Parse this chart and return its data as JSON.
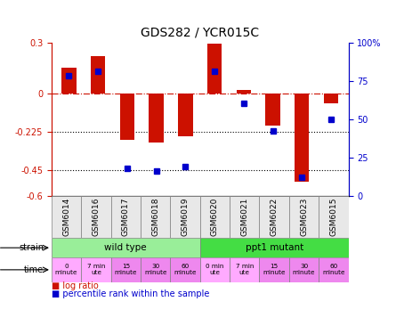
{
  "title": "GDS282 / YCR015C",
  "samples": [
    "GSM6014",
    "GSM6016",
    "GSM6017",
    "GSM6018",
    "GSM6019",
    "GSM6020",
    "GSM6021",
    "GSM6022",
    "GSM6023",
    "GSM6015"
  ],
  "log_ratio": [
    0.15,
    0.22,
    -0.27,
    -0.29,
    -0.25,
    0.29,
    0.02,
    -0.19,
    -0.52,
    -0.06
  ],
  "percentile": [
    78,
    81,
    18,
    16,
    19,
    81,
    60,
    42,
    12,
    50
  ],
  "ylim": [
    -0.6,
    0.3
  ],
  "bar_color": "#CC1100",
  "dot_color": "#0000CC",
  "zero_line_color": "#CC1100",
  "hline_color": "black",
  "strain_labels": [
    {
      "text": "wild type",
      "start": 0,
      "end": 5,
      "color": "#99EE99"
    },
    {
      "text": "ppt1 mutant",
      "start": 5,
      "end": 10,
      "color": "#44DD44"
    }
  ],
  "time_labels": [
    {
      "text": "0\nminute",
      "idx": 0,
      "color": "#FFAAFF"
    },
    {
      "text": "7 min\nute",
      "idx": 1,
      "color": "#FFAAFF"
    },
    {
      "text": "15\nminute",
      "idx": 2,
      "color": "#EE88EE"
    },
    {
      "text": "30\nminute",
      "idx": 3,
      "color": "#EE88EE"
    },
    {
      "text": "60\nminute",
      "idx": 4,
      "color": "#EE88EE"
    },
    {
      "text": "0 min\nute",
      "idx": 5,
      "color": "#FFAAFF"
    },
    {
      "text": "7 min\nute",
      "idx": 6,
      "color": "#FFAAFF"
    },
    {
      "text": "15\nminute",
      "idx": 7,
      "color": "#EE88EE"
    },
    {
      "text": "30\nminute",
      "idx": 8,
      "color": "#EE88EE"
    },
    {
      "text": "60\nminute",
      "idx": 9,
      "color": "#EE88EE"
    }
  ],
  "bg_color": "#FFFFFF",
  "axis_left_color": "#CC1100",
  "axis_right_color": "#0000CC"
}
